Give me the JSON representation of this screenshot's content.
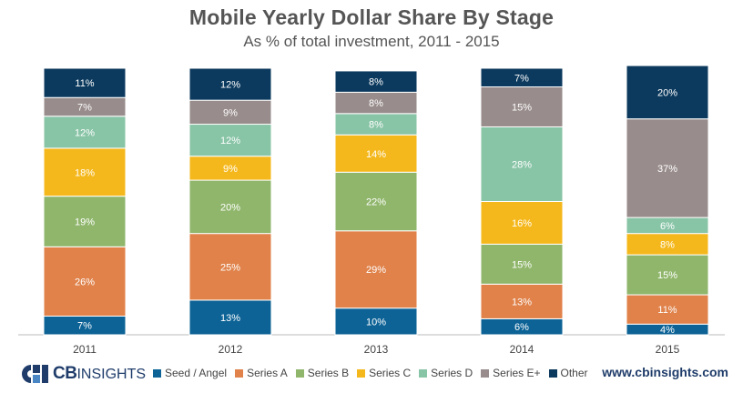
{
  "title": "Mobile Yearly Dollar Share By Stage",
  "subtitle": "As % of total investment, 2011 - 2015",
  "logo": {
    "brand_bold": "CB",
    "brand_thin": "INSIGHTS"
  },
  "website": "www.cbinsights.com",
  "colors": {
    "Seed / Angel": "#0d6396",
    "Series A": "#e0824a",
    "Series B": "#8fb66b",
    "Series C": "#f5b81c",
    "Series D": "#88c4a6",
    "Series E+": "#988c8c",
    "Other": "#0c3a5e"
  },
  "chart_data": {
    "type": "bar",
    "stacked": true,
    "title": "Mobile Yearly Dollar Share By Stage",
    "subtitle": "As % of total investment, 2011 - 2015",
    "xlabel": "",
    "ylabel": "",
    "ylim": [
      0,
      100
    ],
    "categories": [
      "2011",
      "2012",
      "2013",
      "2014",
      "2015"
    ],
    "series": [
      {
        "name": "Seed / Angel",
        "values": [
          7,
          13,
          10,
          6,
          4
        ],
        "labels": [
          "7%",
          "13%",
          "10%",
          "6%",
          "4%"
        ]
      },
      {
        "name": "Series A",
        "values": [
          26,
          25,
          29,
          13,
          11
        ],
        "labels": [
          "26%",
          "25%",
          "29%",
          "13%",
          "11%"
        ]
      },
      {
        "name": "Series B",
        "values": [
          19,
          20,
          22,
          15,
          15
        ],
        "labels": [
          "19%",
          "20%",
          "22%",
          "15%",
          "15%"
        ]
      },
      {
        "name": "Series C",
        "values": [
          18,
          9,
          14,
          16,
          8
        ],
        "labels": [
          "18%",
          "9%",
          "14%",
          "16%",
          "8%"
        ]
      },
      {
        "name": "Series D",
        "values": [
          12,
          12,
          8,
          28,
          6
        ],
        "labels": [
          "12%",
          "12%",
          "8%",
          "28%",
          "6%"
        ]
      },
      {
        "name": "Series E+",
        "values": [
          7,
          9,
          8,
          15,
          37
        ],
        "labels": [
          "7%",
          "9%",
          "8%",
          "15%",
          "37%"
        ]
      },
      {
        "name": "Other",
        "values": [
          11,
          12,
          8,
          7,
          20
        ],
        "labels": [
          "11%",
          "12%",
          "8%",
          "7%",
          "20%"
        ]
      }
    ],
    "legend": [
      "Seed / Angel",
      "Series A",
      "Series B",
      "Series C",
      "Series D",
      "Series E+",
      "Other"
    ],
    "legend_position": "bottom",
    "grid": false
  }
}
